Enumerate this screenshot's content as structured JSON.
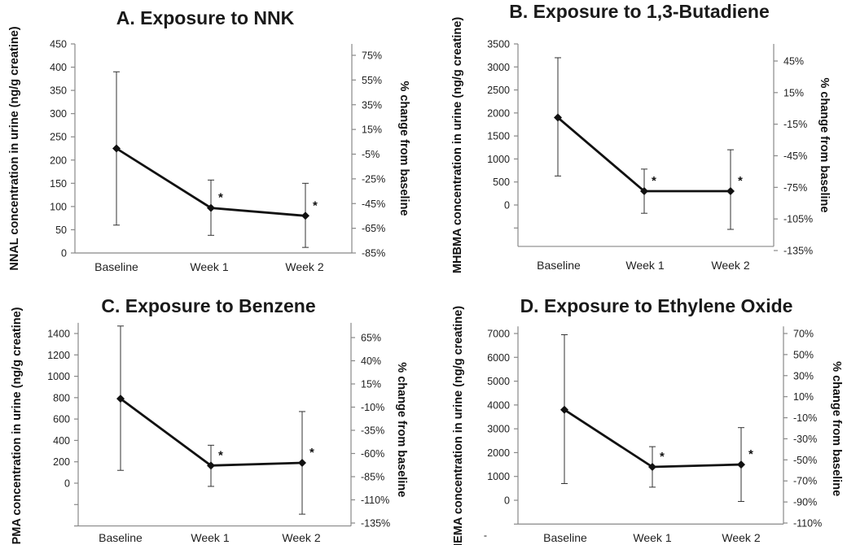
{
  "chart_data": [
    {
      "type": "line",
      "title": "A. Exposure to NNK",
      "ylabel": "NNAL concentration in urine (ng/g creatine)",
      "y2label": "% change from baseline",
      "categories": [
        "Baseline",
        "Week 1",
        "Week 2"
      ],
      "values": [
        225,
        97,
        80
      ],
      "errors": [
        [
          60,
          390
        ],
        [
          38,
          157
        ],
        [
          12,
          150
        ]
      ],
      "significant": [
        false,
        true,
        true
      ],
      "ylim": [
        0,
        450
      ],
      "yticks": [
        "0",
        "50",
        "100",
        "150",
        "200",
        "250",
        "300",
        "350",
        "400",
        "450"
      ],
      "y2ticks": [
        "-85%",
        "-65%",
        "-45%",
        "-25%",
        "-5%",
        "15%",
        "35%",
        "55%",
        "75%"
      ],
      "grid": false
    },
    {
      "type": "line",
      "title": "B. Exposure to 1,3-Butadiene",
      "ylabel": "MHBMA concentration in urine (ng/g creatine)",
      "y2label": "% change from baseline",
      "categories": [
        "Baseline",
        "Week 1",
        "Week 2"
      ],
      "values": [
        1900,
        300,
        300
      ],
      "errors": [
        [
          630,
          3200
        ],
        [
          -180,
          780
        ],
        [
          -530,
          1200
        ]
      ],
      "significant": [
        false,
        true,
        true
      ],
      "ylim": [
        -900,
        3500
      ],
      "yticks": [
        "0",
        "500",
        "1000",
        "1500",
        "2000",
        "2500",
        "3000",
        "3500"
      ],
      "y2ticks": [
        "-135%",
        "-105%",
        "-75%",
        "-45%",
        "-15%",
        "15%",
        "45%"
      ],
      "grid": false
    },
    {
      "type": "line",
      "title": "C. Exposure to Benzene",
      "ylabel": "SPMA concentration in urine (ng/g creatine)",
      "y2label": "% change from baseline",
      "categories": [
        "Baseline",
        "Week 1",
        "Week 2"
      ],
      "values": [
        790,
        165,
        190
      ],
      "errors": [
        [
          120,
          1470
        ],
        [
          -30,
          355
        ],
        [
          -290,
          670
        ]
      ],
      "significant": [
        false,
        true,
        true
      ],
      "ylim": [
        -400,
        1500
      ],
      "yticks": [
        "0",
        "200",
        "400",
        "600",
        "800",
        "1000",
        "1200",
        "1400"
      ],
      "y2ticks": [
        "-135%",
        "-110%",
        "-85%",
        "-60%",
        "-35%",
        "-10%",
        "15%",
        "40%",
        "65%"
      ],
      "grid": false
    },
    {
      "type": "line",
      "title": "D. Exposure to Ethylene Oxide",
      "ylabel": "HEMA concentration in urine (ng/g creatine)",
      "y2label": "% change from baseline",
      "categories": [
        "Baseline",
        "Week 1",
        "Week 2"
      ],
      "values": [
        3800,
        1400,
        1500
      ],
      "errors": [
        [
          700,
          6950
        ],
        [
          550,
          2250
        ],
        [
          -50,
          3050
        ]
      ],
      "significant": [
        false,
        true,
        true
      ],
      "ylim": [
        -1000,
        7300
      ],
      "yticks": [
        "0",
        "1000",
        "2000",
        "3000",
        "4000",
        "5000",
        "6000",
        "7000"
      ],
      "extra_tick": "-",
      "y2ticks": [
        "-110%",
        "-90%",
        "-70%",
        "-50%",
        "-30%",
        "-10%",
        "10%",
        "30%",
        "50%",
        "70%"
      ],
      "grid": false
    }
  ]
}
